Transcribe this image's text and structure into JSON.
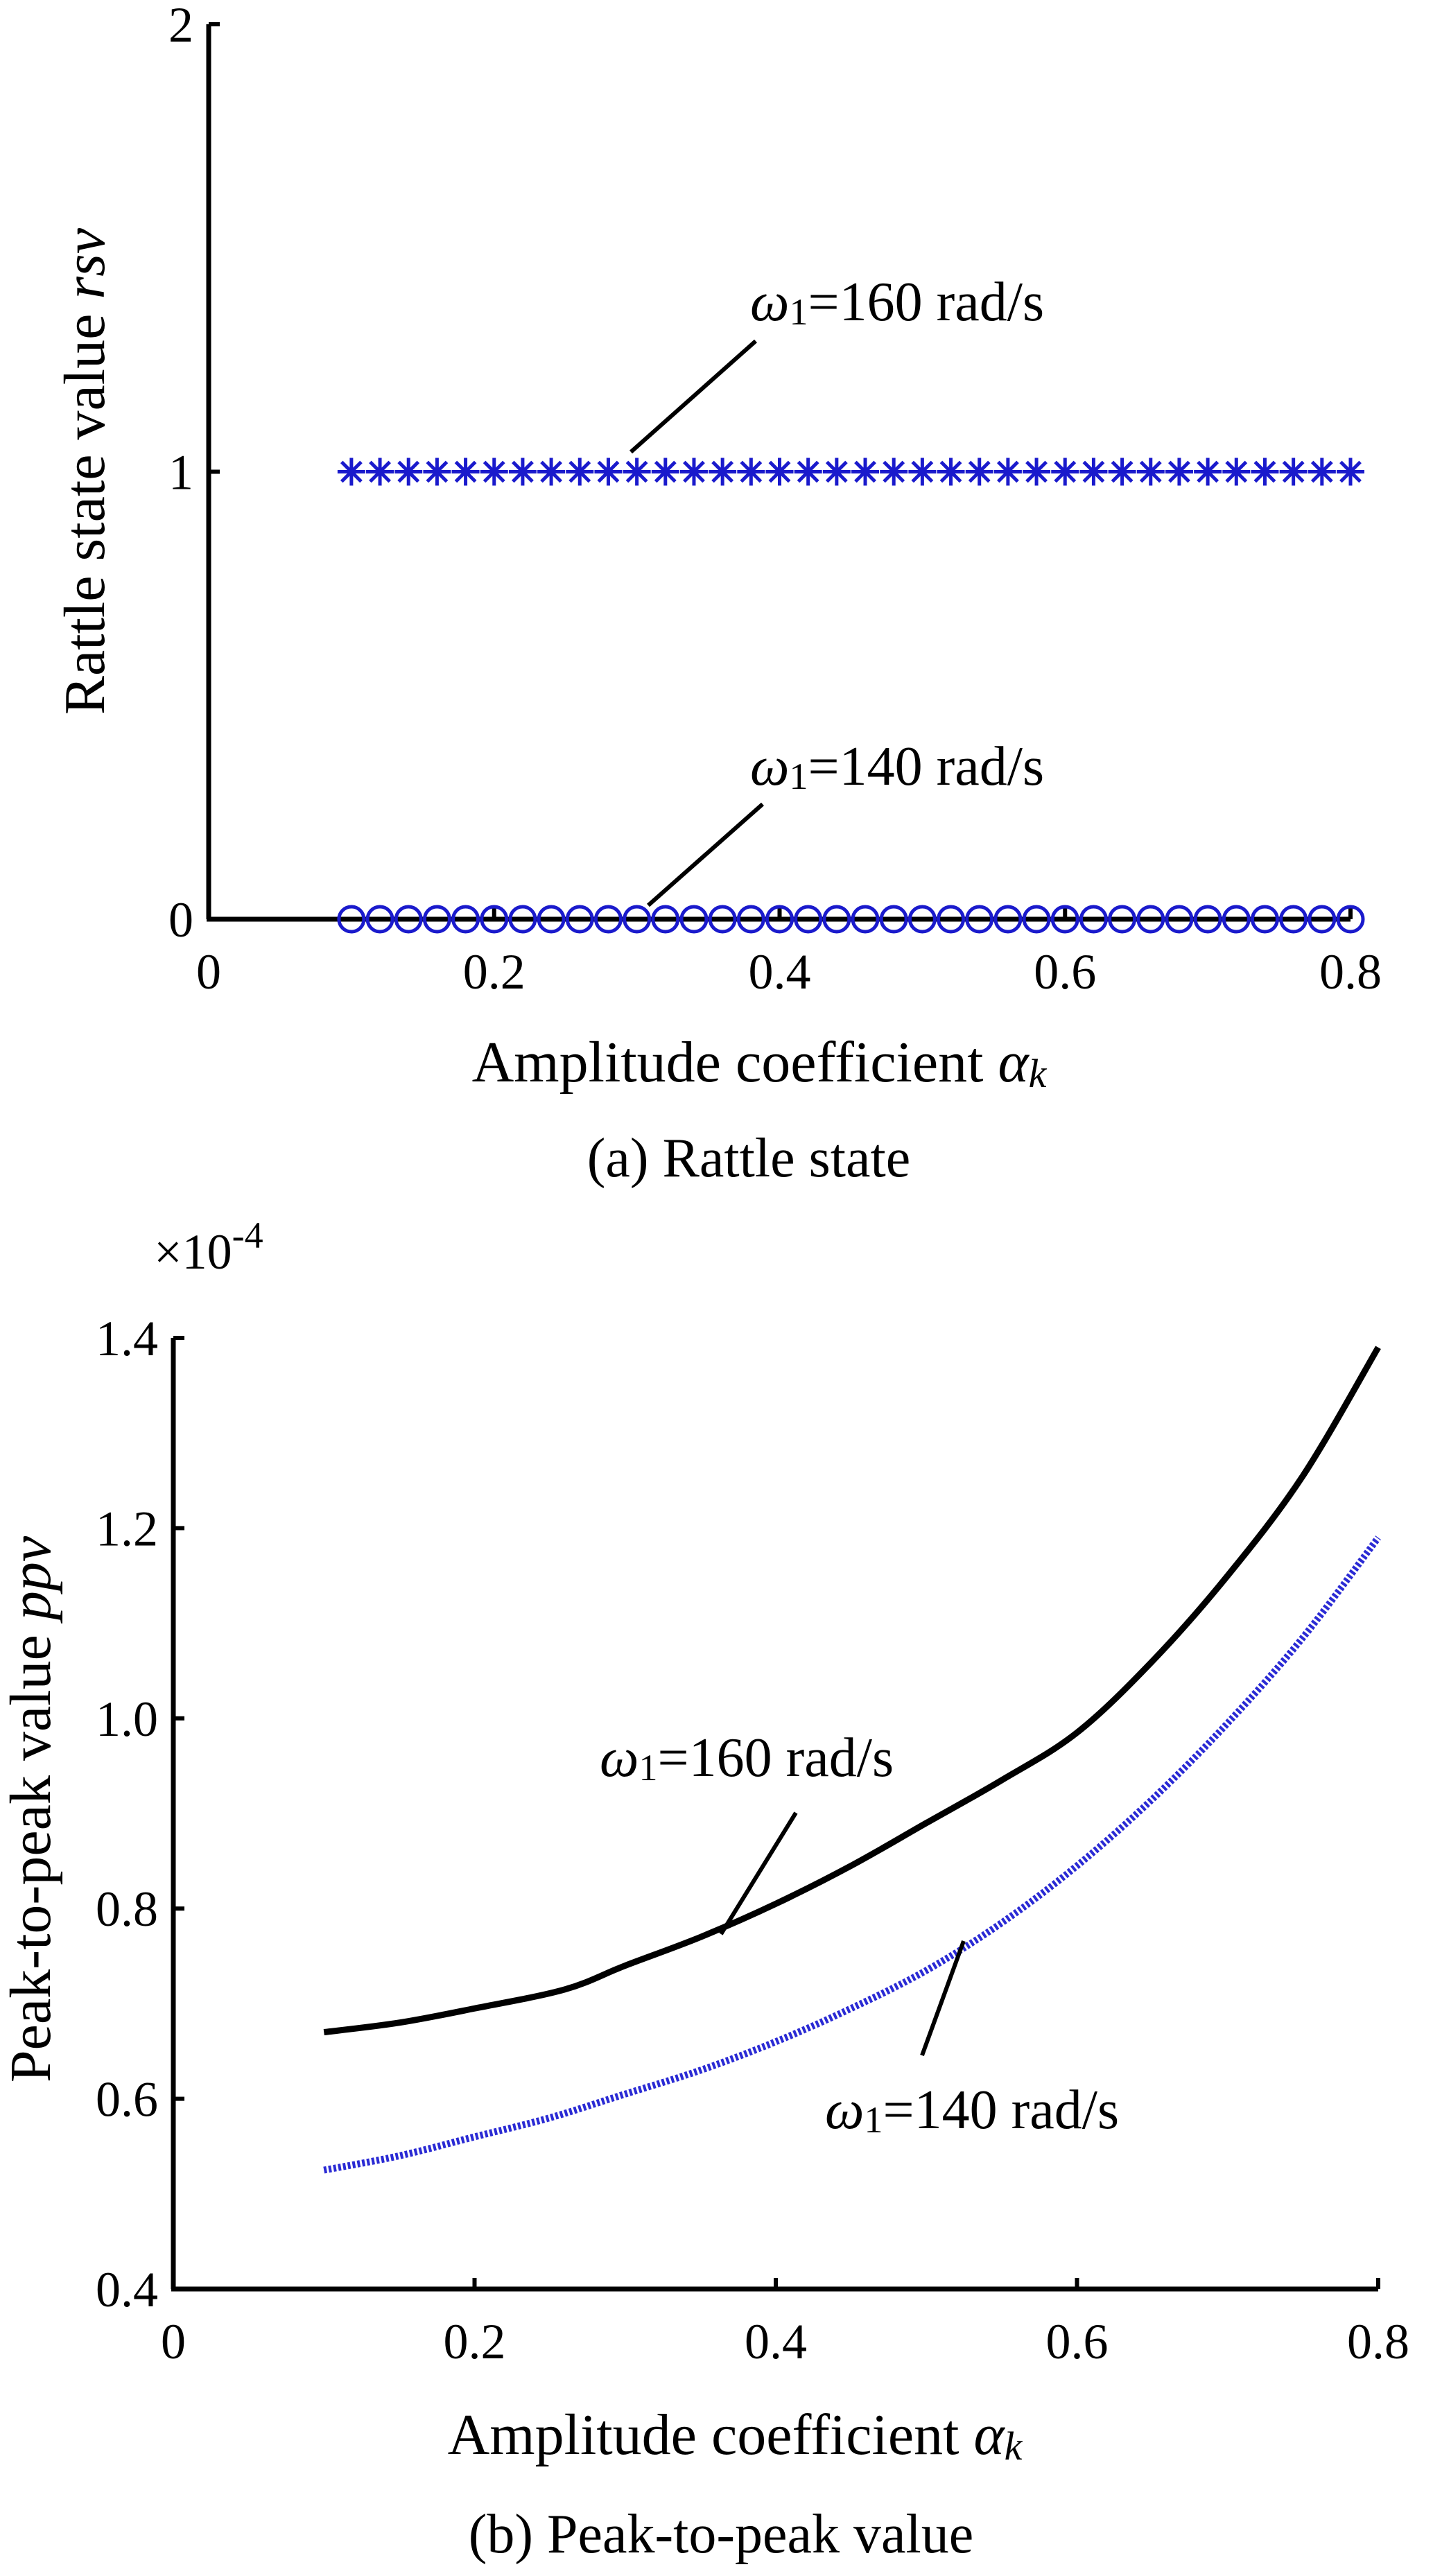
{
  "figure": {
    "captions": [
      "(a) Rattle state",
      "(b) Peak-to-peak value"
    ]
  },
  "chart_data": [
    {
      "type": "scatter",
      "caption": "(a) Rattle state",
      "xlabel": "Amplitude coefficient",
      "xlabel_symbol": "α",
      "xlabel_subscript": "k",
      "ylabel": "Rattle state value",
      "ylabel_symbol": "rsv",
      "xlim": [
        0,
        0.8
      ],
      "ylim": [
        0,
        2
      ],
      "x_ticks": [
        "0",
        "0.2",
        "0.4",
        "0.6",
        "0.8"
      ],
      "y_ticks": [
        "0",
        "1",
        "2"
      ],
      "grid": false,
      "series": [
        {
          "name": "ω1=160 rad/s",
          "marker": "asterisk",
          "color": "#1a1acc",
          "x_range": [
            0.1,
            0.8
          ],
          "n_points": 36,
          "y": 1
        },
        {
          "name": "ω1=140 rad/s",
          "marker": "circle",
          "color": "#1a1acc",
          "x_range": [
            0.1,
            0.8
          ],
          "n_points": 36,
          "y": 0
        }
      ],
      "annotations": [
        {
          "symbol": "ω",
          "subscript": "1",
          "text": "=160 rad/s",
          "series": 0,
          "arrow_to": [
            0.3,
            1
          ]
        },
        {
          "symbol": "ω",
          "subscript": "1",
          "text": "=140 rad/s",
          "series": 1,
          "arrow_to": [
            0.31,
            0
          ]
        }
      ]
    },
    {
      "type": "line",
      "caption": "(b) Peak-to-peak value",
      "xlabel": "Amplitude coefficient",
      "xlabel_symbol": "α",
      "xlabel_subscript": "k",
      "ylabel": "Peak-to-peak value",
      "ylabel_symbol": "ppv",
      "y_multiplier": "×10",
      "y_multiplier_exp": "-4",
      "xlim": [
        0,
        0.8
      ],
      "ylim": [
        0.4,
        1.4
      ],
      "x_ticks": [
        "0",
        "0.2",
        "0.4",
        "0.6",
        "0.8"
      ],
      "y_ticks": [
        "0.4",
        "0.6",
        "0.8",
        "1.0",
        "1.2",
        "1.4"
      ],
      "grid": false,
      "series": [
        {
          "name": "ω1=160 rad/s",
          "color": "#000000",
          "style": "solid",
          "x": [
            0.1,
            0.15,
            0.2,
            0.26,
            0.3,
            0.35,
            0.4,
            0.45,
            0.5,
            0.55,
            0.6,
            0.65,
            0.7,
            0.75,
            0.8
          ],
          "y": [
            0.67,
            0.68,
            0.695,
            0.715,
            0.74,
            0.77,
            0.805,
            0.845,
            0.89,
            0.935,
            0.985,
            1.06,
            1.15,
            1.255,
            1.39
          ]
        },
        {
          "name": "ω1=140 rad/s",
          "color": "#2a2ad4",
          "style": "dotted",
          "x": [
            0.1,
            0.15,
            0.2,
            0.25,
            0.3,
            0.35,
            0.4,
            0.45,
            0.5,
            0.55,
            0.6,
            0.65,
            0.7,
            0.75,
            0.8
          ],
          "y": [
            0.525,
            0.54,
            0.56,
            0.58,
            0.605,
            0.63,
            0.66,
            0.695,
            0.735,
            0.785,
            0.845,
            0.915,
            0.995,
            1.085,
            1.19
          ]
        }
      ],
      "annotations": [
        {
          "symbol": "ω",
          "subscript": "1",
          "text": "=160 rad/s",
          "series": 0,
          "arrow_to": [
            0.37,
            0.78
          ]
        },
        {
          "symbol": "ω",
          "subscript": "1",
          "text": "=140 rad/s",
          "series": 1,
          "arrow_to": [
            0.53,
            0.775
          ]
        }
      ]
    }
  ]
}
